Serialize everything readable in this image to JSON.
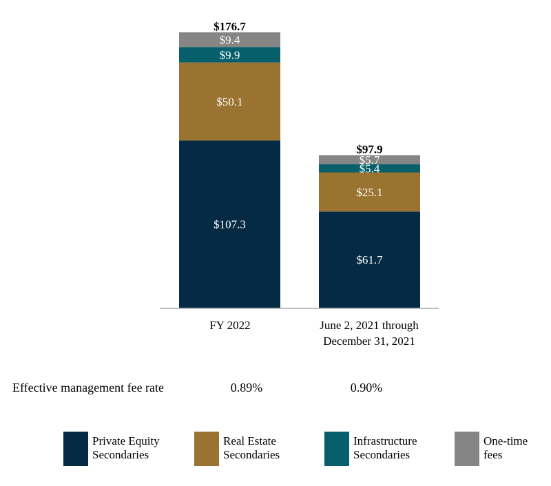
{
  "chart_data": {
    "type": "bar",
    "stacked": true,
    "categories": [
      "FY 2022",
      "June 2, 2021 through December 31, 2021"
    ],
    "category_lines": [
      [
        "FY 2022"
      ],
      [
        "June 2, 2021 through",
        "December 31, 2021"
      ]
    ],
    "series": [
      {
        "name": "Private Equity Secondaries",
        "color": "#052a43",
        "values": [
          107.3,
          61.7
        ],
        "labels": [
          "$107.3",
          "$61.7"
        ]
      },
      {
        "name": "Real Estate Secondaries",
        "color": "#9a7331",
        "values": [
          50.1,
          25.1
        ],
        "labels": [
          "$50.1",
          "$25.1"
        ]
      },
      {
        "name": "Infrastructure Secondaries",
        "color": "#065f6b",
        "values": [
          9.9,
          5.4
        ],
        "labels": [
          "$9.9",
          "$5.4"
        ]
      },
      {
        "name": "One-time fees",
        "color": "#858585",
        "values": [
          9.4,
          5.7
        ],
        "labels": [
          "$9.4",
          "$5.7"
        ]
      }
    ],
    "totals": [
      "$176.7",
      "$97.9"
    ],
    "ylim": [
      0,
      176.7
    ],
    "grid": false,
    "legend_position": "bottom"
  },
  "legend_lines": [
    [
      "Private Equity",
      "Secondaries"
    ],
    [
      "Real Estate",
      "Secondaries"
    ],
    [
      "Infrastructure",
      "Secondaries"
    ],
    [
      "One-time",
      "fees"
    ]
  ],
  "fee_rate": {
    "label": "Effective management fee rate",
    "values": [
      "0.89%",
      "0.90%"
    ]
  }
}
